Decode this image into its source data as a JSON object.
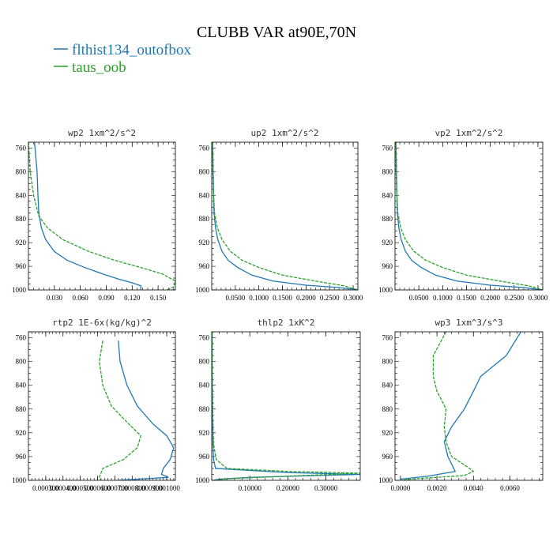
{
  "title": "CLUBB VAR at90E,70N",
  "legend": [
    {
      "name": "flthist134_outofbox",
      "color": "#1f77b4"
    },
    {
      "name": "taus_oob",
      "color": "#2ca02c"
    }
  ],
  "chart_data": [
    {
      "type": "line",
      "title": "wp2  1xm^2/s^2",
      "xlim": [
        0,
        0.17
      ],
      "ylim": [
        1000,
        750
      ],
      "ylabel": "",
      "xlabel": "",
      "xticks": [
        0.03,
        0.06,
        0.09,
        0.12,
        0.15
      ],
      "xtick_labels": [
        "0.030",
        "0.060",
        "0.090",
        "0.120",
        "0.150"
      ],
      "yticks": [
        760,
        800,
        840,
        880,
        920,
        960,
        1000
      ],
      "series": [
        {
          "name": "flthist134_outofbox",
          "points": [
            [
              0.007,
              750
            ],
            [
              0.01,
              800
            ],
            [
              0.011,
              840
            ],
            [
              0.012,
              870
            ],
            [
              0.015,
              895
            ],
            [
              0.02,
              915
            ],
            [
              0.03,
              935
            ],
            [
              0.045,
              950
            ],
            [
              0.065,
              962
            ],
            [
              0.09,
              975
            ],
            [
              0.105,
              982
            ],
            [
              0.12,
              988
            ],
            [
              0.13,
              993
            ],
            [
              0.13,
              1000
            ]
          ]
        },
        {
          "name": "taus_oob",
          "points": [
            [
              0.0,
              750
            ],
            [
              0.002,
              800
            ],
            [
              0.006,
              840
            ],
            [
              0.012,
              875
            ],
            [
              0.022,
              895
            ],
            [
              0.04,
              915
            ],
            [
              0.07,
              935
            ],
            [
              0.1,
              950
            ],
            [
              0.13,
              962
            ],
            [
              0.155,
              973
            ],
            [
              0.17,
              985
            ],
            [
              0.168,
              995
            ],
            [
              0.16,
              1000
            ]
          ]
        }
      ]
    },
    {
      "type": "line",
      "title": "up2  1xm^2/s^2",
      "xlim": [
        0,
        0.31
      ],
      "ylim": [
        1000,
        750
      ],
      "ylabel": "",
      "xlabel": "",
      "xticks": [
        0.05,
        0.1,
        0.15,
        0.2,
        0.25,
        0.3
      ],
      "xtick_labels": [
        "0.0500",
        "0.1000",
        "0.1500",
        "0.2000",
        "0.2500",
        "0.3000"
      ],
      "yticks": [
        760,
        800,
        840,
        880,
        920,
        960,
        1000
      ],
      "series": [
        {
          "name": "flthist134_outofbox",
          "points": [
            [
              0.002,
              750
            ],
            [
              0.003,
              800
            ],
            [
              0.004,
              840
            ],
            [
              0.005,
              870
            ],
            [
              0.008,
              895
            ],
            [
              0.013,
              915
            ],
            [
              0.022,
              935
            ],
            [
              0.035,
              950
            ],
            [
              0.055,
              962
            ],
            [
              0.085,
              975
            ],
            [
              0.13,
              985
            ],
            [
              0.2,
              992
            ],
            [
              0.27,
              996
            ],
            [
              0.31,
              1000
            ]
          ]
        },
        {
          "name": "taus_oob",
          "points": [
            [
              0.001,
              750
            ],
            [
              0.002,
              800
            ],
            [
              0.004,
              840
            ],
            [
              0.006,
              870
            ],
            [
              0.012,
              895
            ],
            [
              0.022,
              915
            ],
            [
              0.04,
              935
            ],
            [
              0.065,
              950
            ],
            [
              0.1,
              962
            ],
            [
              0.15,
              975
            ],
            [
              0.22,
              985
            ],
            [
              0.28,
              993
            ],
            [
              0.31,
              1000
            ]
          ]
        }
      ]
    },
    {
      "type": "line",
      "title": "vp2  1xm^2/s^2",
      "xlim": [
        0,
        0.31
      ],
      "ylim": [
        1000,
        750
      ],
      "ylabel": "",
      "xlabel": "",
      "xticks": [
        0.05,
        0.1,
        0.15,
        0.2,
        0.25,
        0.3
      ],
      "xtick_labels": [
        "0.0500",
        "0.1000",
        "0.1500",
        "0.2000",
        "0.2500",
        "0.3000"
      ],
      "yticks": [
        760,
        800,
        840,
        880,
        920,
        960,
        1000
      ],
      "series": [
        {
          "name": "flthist134_outofbox",
          "points": [
            [
              0.002,
              750
            ],
            [
              0.003,
              800
            ],
            [
              0.004,
              840
            ],
            [
              0.005,
              870
            ],
            [
              0.008,
              895
            ],
            [
              0.013,
              915
            ],
            [
              0.022,
              935
            ],
            [
              0.035,
              950
            ],
            [
              0.055,
              962
            ],
            [
              0.085,
              975
            ],
            [
              0.13,
              985
            ],
            [
              0.2,
              992
            ],
            [
              0.27,
              996
            ],
            [
              0.31,
              1000
            ]
          ]
        },
        {
          "name": "taus_oob",
          "points": [
            [
              0.001,
              750
            ],
            [
              0.002,
              800
            ],
            [
              0.004,
              840
            ],
            [
              0.006,
              870
            ],
            [
              0.012,
              895
            ],
            [
              0.022,
              915
            ],
            [
              0.04,
              935
            ],
            [
              0.065,
              950
            ],
            [
              0.1,
              962
            ],
            [
              0.15,
              975
            ],
            [
              0.22,
              985
            ],
            [
              0.28,
              993
            ],
            [
              0.31,
              1000
            ]
          ]
        }
      ]
    },
    {
      "type": "line",
      "title": "rtp2  1E-6x(kg/kg)^2",
      "xlim": [
        0.0002,
        0.00105
      ],
      "ylim": [
        1000,
        750
      ],
      "ylabel": "",
      "xlabel": "",
      "xticks": [
        0.0003,
        0.0004,
        0.0005,
        0.0006,
        0.0007,
        0.0008,
        0.0009,
        0.001
      ],
      "xtick_labels": [
        "0.000300",
        "0.000400",
        "0.000500",
        "0.000600",
        "0.000700",
        "0.000800",
        "0.000900",
        "0.001000"
      ],
      "yticks": [
        760,
        800,
        840,
        880,
        920,
        960,
        1000
      ],
      "series": [
        {
          "name": "flthist134_outofbox",
          "points": [
            [
              0.00072,
              765
            ],
            [
              0.00073,
              800
            ],
            [
              0.00077,
              840
            ],
            [
              0.00083,
              875
            ],
            [
              0.00092,
              905
            ],
            [
              0.001,
              925
            ],
            [
              0.00104,
              945
            ],
            [
              0.00102,
              965
            ],
            [
              0.00098,
              980
            ],
            [
              0.00097,
              990
            ],
            [
              0.00101,
              995
            ],
            [
              0.00072,
              1000
            ]
          ]
        },
        {
          "name": "taus_oob",
          "points": [
            [
              0.00063,
              765
            ],
            [
              0.00061,
              800
            ],
            [
              0.00063,
              840
            ],
            [
              0.00068,
              875
            ],
            [
              0.00078,
              905
            ],
            [
              0.00085,
              925
            ],
            [
              0.00083,
              945
            ],
            [
              0.00075,
              965
            ],
            [
              0.00063,
              980
            ],
            [
              0.00061,
              995
            ],
            [
              0.00062,
              1000
            ]
          ]
        }
      ]
    },
    {
      "type": "line",
      "title": "thlp2  1xK^2",
      "xlim": [
        0,
        0.39
      ],
      "ylim": [
        1000,
        750
      ],
      "ylabel": "",
      "xlabel": "",
      "xticks": [
        0.1,
        0.2,
        0.3
      ],
      "xtick_labels": [
        "0.10000",
        "0.20000",
        "0.30000"
      ],
      "yticks": [
        760,
        800,
        840,
        880,
        920,
        960,
        1000
      ],
      "series": [
        {
          "name": "flthist134_outofbox",
          "points": [
            [
              0.001,
              750
            ],
            [
              0.001,
              800
            ],
            [
              0.001,
              850
            ],
            [
              0.002,
              900
            ],
            [
              0.003,
              940
            ],
            [
              0.005,
              965
            ],
            [
              0.01,
              980
            ],
            [
              0.2,
              987
            ],
            [
              0.39,
              990
            ],
            [
              0.1,
              995
            ],
            [
              0.02,
              998
            ],
            [
              0.005,
              1000
            ]
          ]
        },
        {
          "name": "taus_oob",
          "points": [
            [
              0.001,
              750
            ],
            [
              0.001,
              800
            ],
            [
              0.002,
              850
            ],
            [
              0.003,
              900
            ],
            [
              0.005,
              940
            ],
            [
              0.012,
              965
            ],
            [
              0.04,
              980
            ],
            [
              0.2,
              985
            ],
            [
              0.39,
              988
            ],
            [
              0.2,
              993
            ],
            [
              0.05,
              997
            ],
            [
              0.01,
              1000
            ]
          ]
        }
      ]
    },
    {
      "type": "line",
      "title": "wp3  1xm^3/s^3",
      "xlim": [
        -0.0003,
        0.0078
      ],
      "ylim": [
        1000,
        750
      ],
      "ylabel": "",
      "xlabel": "",
      "xticks": [
        0.0,
        0.002,
        0.004,
        0.006
      ],
      "xtick_labels": [
        "0.0000",
        "0.0020",
        "0.0040",
        "0.0060"
      ],
      "yticks": [
        760,
        800,
        840,
        880,
        920,
        960,
        1000
      ],
      "series": [
        {
          "name": "flthist134_outofbox",
          "points": [
            [
              0.0066,
              750
            ],
            [
              0.0058,
              790
            ],
            [
              0.0044,
              825
            ],
            [
              0.004,
              850
            ],
            [
              0.0035,
              880
            ],
            [
              0.0028,
              910
            ],
            [
              0.0024,
              935
            ],
            [
              0.0026,
              960
            ],
            [
              0.003,
              985
            ],
            [
              0.0015,
              993
            ],
            [
              0.0,
              998
            ],
            [
              0.0,
              1000
            ]
          ]
        },
        {
          "name": "taus_oob",
          "points": [
            [
              0.0025,
              750
            ],
            [
              0.0018,
              790
            ],
            [
              0.0018,
              825
            ],
            [
              0.002,
              850
            ],
            [
              0.0025,
              880
            ],
            [
              0.0024,
              910
            ],
            [
              0.0025,
              935
            ],
            [
              0.0028,
              960
            ],
            [
              0.0037,
              978
            ],
            [
              0.004,
              985
            ],
            [
              0.0035,
              992
            ],
            [
              0.001,
              997
            ],
            [
              0.0,
              1000
            ]
          ]
        }
      ]
    }
  ]
}
